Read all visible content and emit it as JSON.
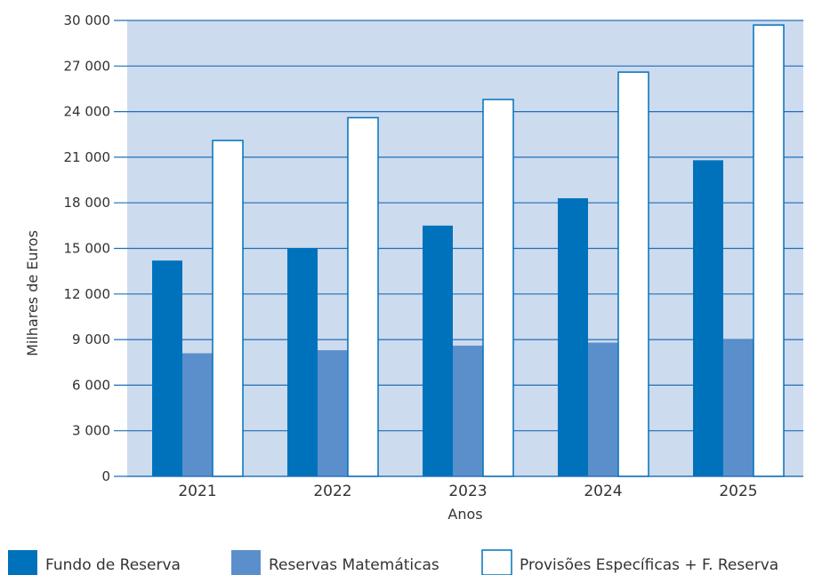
{
  "chart_data": {
    "type": "bar",
    "categories": [
      "2021",
      "2022",
      "2023",
      "2024",
      "2025"
    ],
    "series": [
      {
        "name": "Fundo de Reserva",
        "values": [
          14200,
          15000,
          16500,
          18300,
          20800
        ],
        "color": "#0072bc"
      },
      {
        "name": "Reservas Matemáticas",
        "values": [
          8100,
          8300,
          8600,
          8800,
          9000
        ],
        "color": "#5b8fcc"
      },
      {
        "name": "Provisões Específicas + F. Reserva",
        "values": [
          22100,
          23600,
          24800,
          26600,
          29700
        ],
        "color": "#ffffff"
      }
    ],
    "yticks": [
      "0",
      "3 000",
      "6 000",
      "9 000",
      "12 000",
      "15 000",
      "18 000",
      "21 000",
      "24 000",
      "27 000",
      "30 000"
    ],
    "ylim": [
      0,
      30000
    ],
    "xlabel": "Anos",
    "ylabel": "Milhares de Euros",
    "grid": true,
    "legend_position": "bottom",
    "plot_background": "#cddbef",
    "grid_color": "#1f6fb8",
    "bar_outline": "#0072bc"
  }
}
